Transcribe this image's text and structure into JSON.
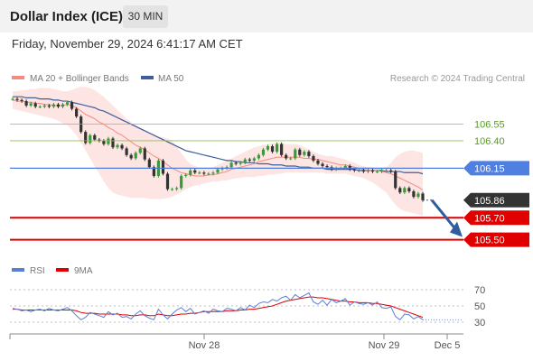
{
  "header": {
    "title": "Dollar Index (ICE)",
    "timeframe": "30 MIN",
    "timestamp": "Friday, November 29, 2024 6:41:17 AM CET"
  },
  "legend": {
    "ma20_label": "MA 20 + Bollinger Bands",
    "ma50_label": "MA 50",
    "credit": "Research © 2024 Trading Central",
    "ma20_color": "#f28b82",
    "ma50_color": "#3e5f9b"
  },
  "rsi_legend": {
    "rsi_label": "RSI",
    "ma9_label": "9MA",
    "rsi_color": "#5b7fd6",
    "ma9_color": "#e00000"
  },
  "x_axis": {
    "ticks": [
      "Nov 28",
      "Nov 29",
      "Dec 5"
    ]
  },
  "chart_data": {
    "type": "candlestick",
    "ylim": [
      105.3,
      106.9
    ],
    "levels": [
      {
        "value": 106.55,
        "label": "106.55",
        "style": "resistance-thin",
        "color": "#8bc34a"
      },
      {
        "value": 106.4,
        "label": "106.40",
        "style": "resistance-thin",
        "color": "#8bc34a"
      },
      {
        "value": 106.15,
        "label": "106.15",
        "style": "pivot",
        "color": "#4f7fe0"
      },
      {
        "value": 105.86,
        "label": "105.86",
        "style": "last-price",
        "color": "#333333"
      },
      {
        "value": 105.7,
        "label": "105.70",
        "style": "support",
        "color": "#e00000"
      },
      {
        "value": 105.5,
        "label": "105.50",
        "style": "support",
        "color": "#e00000"
      }
    ],
    "close": [
      106.78,
      106.77,
      106.76,
      106.72,
      106.74,
      106.71,
      106.71,
      106.72,
      106.71,
      106.73,
      106.71,
      106.73,
      106.75,
      106.69,
      106.62,
      106.48,
      106.38,
      106.45,
      106.41,
      106.4,
      106.37,
      106.42,
      106.34,
      106.36,
      106.33,
      106.27,
      106.24,
      106.29,
      106.33,
      106.23,
      106.16,
      106.08,
      106.22,
      106.1,
      105.96,
      105.96,
      105.97,
      106.08,
      106.09,
      106.13,
      106.11,
      106.11,
      106.1,
      106.1,
      106.11,
      106.14,
      106.15,
      106.16,
      106.2,
      106.19,
      106.2,
      106.23,
      106.22,
      106.24,
      106.27,
      106.32,
      106.35,
      106.3,
      106.37,
      106.27,
      106.24,
      106.24,
      106.32,
      106.27,
      106.3,
      106.26,
      106.22,
      106.19,
      106.17,
      106.16,
      106.14,
      106.15,
      106.15,
      106.17,
      106.14,
      106.13,
      106.13,
      106.12,
      106.13,
      106.12,
      106.12,
      106.13,
      106.13,
      106.12,
      105.97,
      105.93,
      105.97,
      105.94,
      105.89,
      105.92,
      105.86
    ],
    "ma20": [
      106.77,
      106.76,
      106.76,
      106.75,
      106.75,
      106.74,
      106.74,
      106.73,
      106.73,
      106.72,
      106.72,
      106.72,
      106.73,
      106.72,
      106.7,
      106.67,
      106.64,
      106.62,
      106.6,
      106.57,
      106.55,
      106.52,
      106.5,
      106.47,
      106.45,
      106.42,
      106.39,
      106.36,
      106.34,
      106.32,
      106.29,
      106.26,
      106.24,
      106.21,
      106.18,
      106.15,
      106.13,
      106.11,
      106.1,
      106.09,
      106.08,
      106.08,
      106.08,
      106.09,
      106.09,
      106.1,
      106.11,
      106.12,
      106.14,
      106.15,
      106.16,
      106.17,
      106.18,
      106.19,
      106.21,
      106.22,
      106.23,
      106.24,
      106.25,
      106.25,
      106.25,
      106.25,
      106.25,
      106.25,
      106.24,
      106.24,
      106.23,
      106.23,
      106.22,
      106.21,
      106.2,
      106.19,
      106.18,
      106.18,
      106.17,
      106.16,
      106.15,
      106.14,
      106.13,
      106.13,
      106.13,
      106.12,
      106.11,
      106.1,
      106.08,
      106.06,
      106.04,
      106.02,
      106.0,
      105.98,
      105.95
    ],
    "bb_upper": [
      106.85,
      106.85,
      106.86,
      106.86,
      106.87,
      106.87,
      106.88,
      106.88,
      106.88,
      106.87,
      106.86,
      106.85,
      106.85,
      106.86,
      106.88,
      106.89,
      106.89,
      106.88,
      106.86,
      106.83,
      106.8,
      106.76,
      106.72,
      106.68,
      106.64,
      106.6,
      106.57,
      106.54,
      106.52,
      106.5,
      106.47,
      106.45,
      106.44,
      106.43,
      106.42,
      106.4,
      106.35,
      106.29,
      106.23,
      106.19,
      106.17,
      106.15,
      106.15,
      106.15,
      106.16,
      106.18,
      106.2,
      106.22,
      106.24,
      106.26,
      106.28,
      106.3,
      106.32,
      106.34,
      106.35,
      106.36,
      106.37,
      106.38,
      106.38,
      106.38,
      106.37,
      106.37,
      106.37,
      106.36,
      106.34,
      106.32,
      106.3,
      106.28,
      106.27,
      106.26,
      106.26,
      106.25,
      106.24,
      106.23,
      106.21,
      106.2,
      106.18,
      106.17,
      106.16,
      106.16,
      106.15,
      106.15,
      106.16,
      106.2,
      106.25,
      106.28,
      106.3,
      106.31,
      106.31,
      106.3,
      106.29
    ],
    "bb_lower": [
      106.69,
      106.68,
      106.67,
      106.66,
      106.65,
      106.64,
      106.63,
      106.62,
      106.61,
      106.6,
      106.58,
      106.56,
      106.54,
      106.5,
      106.45,
      106.38,
      106.31,
      106.24,
      106.17,
      106.1,
      106.03,
      105.97,
      105.93,
      105.91,
      105.9,
      105.89,
      105.88,
      105.88,
      105.88,
      105.88,
      105.87,
      105.87,
      105.87,
      105.87,
      105.88,
      105.89,
      105.91,
      105.93,
      105.96,
      105.98,
      105.99,
      106.0,
      106.01,
      106.02,
      106.03,
      106.03,
      106.04,
      106.04,
      106.05,
      106.06,
      106.06,
      106.07,
      106.07,
      106.07,
      106.08,
      106.08,
      106.09,
      106.09,
      106.1,
      106.1,
      106.11,
      106.11,
      106.11,
      106.11,
      106.11,
      106.11,
      106.11,
      106.11,
      106.11,
      106.1,
      106.1,
      106.1,
      106.1,
      106.1,
      106.09,
      106.08,
      106.07,
      106.06,
      106.04,
      106.02,
      105.99,
      105.96,
      105.93,
      105.87,
      105.82,
      105.78,
      105.76,
      105.75,
      105.74,
      105.73,
      105.72
    ],
    "ma50": [
      106.8,
      106.8,
      106.8,
      106.79,
      106.79,
      106.79,
      106.78,
      106.78,
      106.78,
      106.77,
      106.77,
      106.76,
      106.76,
      106.75,
      106.74,
      106.73,
      106.72,
      106.71,
      106.7,
      106.68,
      106.67,
      106.65,
      106.63,
      106.61,
      106.59,
      106.57,
      106.55,
      106.53,
      106.51,
      106.49,
      106.47,
      106.45,
      106.43,
      106.41,
      106.39,
      106.37,
      106.35,
      106.33,
      106.31,
      106.3,
      106.29,
      106.28,
      106.27,
      106.26,
      106.25,
      106.24,
      106.23,
      106.22,
      106.22,
      106.21,
      106.21,
      106.2,
      106.2,
      106.2,
      106.19,
      106.19,
      106.19,
      106.18,
      106.18,
      106.18,
      106.17,
      106.17,
      106.17,
      106.16,
      106.16,
      106.16,
      106.15,
      106.15,
      106.15,
      106.14,
      106.14,
      106.14,
      106.14,
      106.14,
      106.14,
      106.14,
      106.13,
      106.13,
      106.13,
      106.13,
      106.13,
      106.13,
      106.12,
      106.12,
      106.12,
      106.12,
      106.11,
      106.11,
      106.11,
      106.11,
      106.1
    ],
    "forecast": {
      "from": 105.86,
      "to": 105.55,
      "color": "#2f5d9e"
    },
    "rsi": {
      "ylim": [
        20,
        80
      ],
      "levels": [
        70,
        50,
        30
      ],
      "rsi": [
        47,
        46,
        44,
        45,
        43,
        45,
        46,
        44,
        47,
        45,
        44,
        46,
        48,
        44,
        38,
        33,
        36,
        42,
        40,
        38,
        36,
        43,
        39,
        41,
        36,
        37,
        34,
        40,
        44,
        38,
        35,
        33,
        46,
        39,
        34,
        40,
        45,
        48,
        43,
        47,
        40,
        42,
        44,
        41,
        46,
        44,
        43,
        47,
        46,
        44,
        48,
        45,
        51,
        48,
        53,
        55,
        54,
        58,
        56,
        60,
        62,
        57,
        64,
        60,
        63,
        66,
        55,
        52,
        57,
        51,
        58,
        54,
        56,
        59,
        51,
        55,
        53,
        52,
        54,
        51,
        55,
        48,
        47,
        49,
        37,
        33,
        40,
        39,
        34,
        37,
        33
      ],
      "ma9": [
        46,
        46,
        45,
        45,
        45,
        45,
        45,
        45,
        45,
        45,
        45,
        45,
        45,
        45,
        44,
        42,
        41,
        41,
        41,
        40,
        40,
        40,
        40,
        40,
        39,
        39,
        38,
        38,
        39,
        39,
        38,
        38,
        40,
        39,
        38,
        38,
        39,
        40,
        40,
        41,
        41,
        42,
        43,
        43,
        43,
        43,
        43,
        44,
        44,
        44,
        45,
        45,
        46,
        46,
        47,
        48,
        49,
        50,
        52,
        54,
        56,
        57,
        58,
        59,
        60,
        61,
        61,
        60,
        60,
        59,
        58,
        57,
        56,
        56,
        55,
        55,
        54,
        54,
        54,
        53,
        53,
        52,
        51,
        50,
        48,
        46,
        44,
        42,
        40,
        38,
        36
      ]
    }
  }
}
